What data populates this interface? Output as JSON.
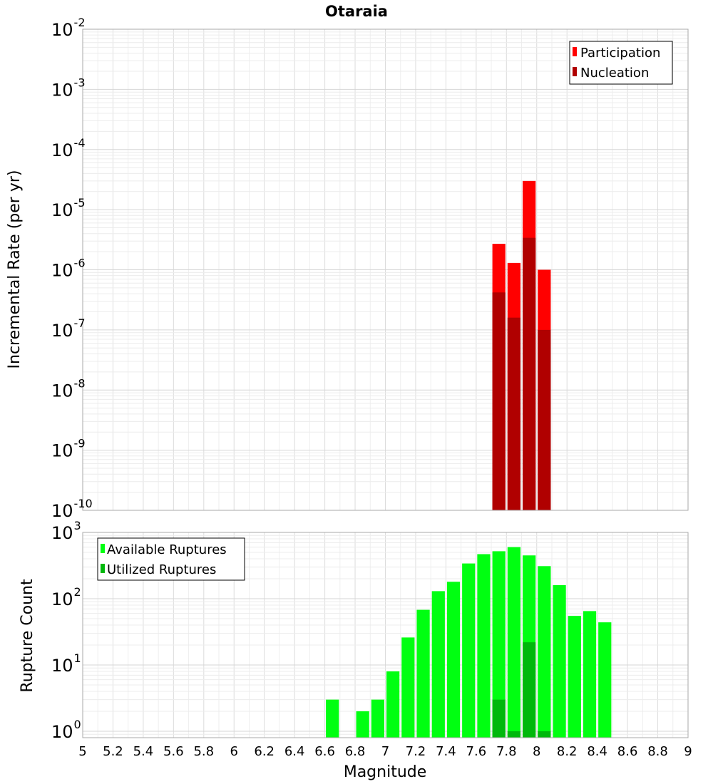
{
  "chart_data": [
    {
      "type": "bar",
      "title": "Otaraia",
      "xlabel": "",
      "ylabel": "Incremental Rate (per yr)",
      "yscale": "log",
      "ylim": [
        1e-10,
        0.01
      ],
      "xlim": [
        5,
        9
      ],
      "y_ticks": [
        {
          "base": "10",
          "exp": "-2"
        },
        {
          "base": "10",
          "exp": "-3"
        },
        {
          "base": "10",
          "exp": "-4"
        },
        {
          "base": "10",
          "exp": "-5"
        },
        {
          "base": "10",
          "exp": "-6"
        },
        {
          "base": "10",
          "exp": "-7"
        },
        {
          "base": "10",
          "exp": "-8"
        },
        {
          "base": "10",
          "exp": "-9"
        },
        {
          "base": "10",
          "exp": "-10"
        }
      ],
      "legend_position": "top-right",
      "bar_width": 0.1,
      "series": [
        {
          "name": "Participation",
          "color": "#ff0000",
          "x": [
            7.75,
            7.85,
            7.95,
            8.05
          ],
          "values": [
            2.7e-06,
            1.3e-06,
            3e-05,
            1e-06
          ]
        },
        {
          "name": "Nucleation",
          "color": "#b00000",
          "x": [
            7.75,
            7.85,
            7.95,
            8.05
          ],
          "values": [
            4.2e-07,
            1.6e-07,
            3.4e-06,
            1e-07
          ]
        }
      ]
    },
    {
      "type": "bar",
      "title": "",
      "xlabel": "Magnitude",
      "ylabel": "Rupture Count",
      "yscale": "log",
      "ylim": [
        0.8,
        1000
      ],
      "xlim": [
        5,
        9
      ],
      "y_ticks": [
        {
          "base": "10",
          "exp": "3"
        },
        {
          "base": "10",
          "exp": "2"
        },
        {
          "base": "10",
          "exp": "1"
        },
        {
          "base": "10",
          "exp": "0"
        }
      ],
      "x_ticks": [
        "5",
        "5.2",
        "5.4",
        "5.6",
        "5.8",
        "6",
        "6.2",
        "6.4",
        "6.6",
        "6.8",
        "7",
        "7.2",
        "7.4",
        "7.6",
        "7.8",
        "8",
        "8.2",
        "8.4",
        "8.6",
        "8.8",
        "9"
      ],
      "legend_position": "top-left",
      "bar_width": 0.1,
      "series": [
        {
          "name": "Available Ruptures",
          "color": "#00ff11",
          "x": [
            6.65,
            6.85,
            6.95,
            7.05,
            7.15,
            7.25,
            7.35,
            7.45,
            7.55,
            7.65,
            7.75,
            7.85,
            7.95,
            8.05,
            8.15,
            8.25,
            8.35,
            8.45
          ],
          "values": [
            3,
            2,
            3,
            8,
            26,
            68,
            130,
            180,
            340,
            470,
            520,
            600,
            450,
            310,
            160,
            55,
            65,
            44
          ]
        },
        {
          "name": "Utilized Ruptures",
          "color": "#00b80c",
          "x": [
            7.75,
            7.85,
            7.95,
            8.05
          ],
          "values": [
            3,
            1,
            22,
            1
          ]
        }
      ]
    }
  ]
}
